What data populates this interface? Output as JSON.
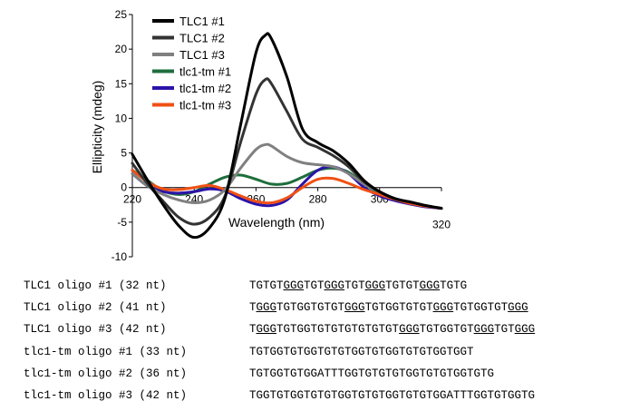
{
  "chart_data": {
    "type": "line",
    "xlabel": "Wavelength (nm)",
    "ylabel": "Ellipticity (mdeg)",
    "xlim": [
      220,
      320
    ],
    "ylim": [
      -10,
      25
    ],
    "x_ticks": [
      220,
      240,
      260,
      280,
      300,
      320
    ],
    "y_ticks": [
      25,
      20,
      15,
      10,
      5,
      0,
      -5,
      -10
    ],
    "legend_position": "top-left",
    "series": [
      {
        "name": "TLC1 #1",
        "color": "#000000",
        "x": [
          220,
          225,
          230,
          235,
          240,
          245,
          250,
          255,
          260,
          263,
          265,
          270,
          275,
          280,
          285,
          290,
          295,
          300,
          305,
          310,
          315,
          320
        ],
        "y": [
          4.8,
          1.0,
          -2.5,
          -5.5,
          -7.2,
          -5.8,
          -1.5,
          9.0,
          19.5,
          22.0,
          21.5,
          16.0,
          8.5,
          6.5,
          5.3,
          3.5,
          1.0,
          -0.6,
          -1.6,
          -2.1,
          -2.6,
          -3.0
        ]
      },
      {
        "name": "TLC1 #2",
        "color": "#333333",
        "x": [
          220,
          225,
          230,
          235,
          240,
          245,
          250,
          255,
          260,
          263,
          265,
          270,
          275,
          280,
          285,
          290,
          295,
          300,
          305,
          310,
          315,
          320
        ],
        "y": [
          3.5,
          0.5,
          -2.0,
          -4.3,
          -5.3,
          -4.3,
          -1.2,
          6.5,
          13.5,
          15.6,
          15.0,
          11.0,
          7.0,
          5.8,
          4.6,
          3.0,
          0.8,
          -0.6,
          -1.6,
          -2.1,
          -2.6,
          -3.0
        ]
      },
      {
        "name": "TLC1 #3",
        "color": "#808080",
        "x": [
          220,
          225,
          230,
          235,
          240,
          245,
          250,
          255,
          260,
          263,
          265,
          270,
          275,
          280,
          285,
          290,
          295,
          300,
          305,
          310,
          315,
          320
        ],
        "y": [
          2.0,
          0.2,
          -1.0,
          -1.8,
          -2.2,
          -1.8,
          -0.3,
          2.8,
          5.5,
          6.2,
          6.0,
          4.5,
          3.6,
          3.3,
          3.0,
          2.0,
          0.5,
          -0.6,
          -1.6,
          -2.1,
          -2.6,
          -3.0
        ]
      },
      {
        "name": "tlc1-tm #1",
        "color": "#1e6e3c",
        "x": [
          220,
          225,
          230,
          235,
          240,
          245,
          250,
          255,
          260,
          265,
          270,
          275,
          280,
          285,
          290,
          295,
          300,
          305,
          310,
          315,
          320
        ],
        "y": [
          2.5,
          1.0,
          -0.5,
          -1.0,
          -0.6,
          0.5,
          1.5,
          1.8,
          1.2,
          0.5,
          0.6,
          1.5,
          2.5,
          2.8,
          2.2,
          0.5,
          -0.8,
          -1.8,
          -2.3,
          -2.7,
          -3.0
        ]
      },
      {
        "name": "tlc1-tm #2",
        "color": "#2a14a8",
        "x": [
          220,
          225,
          230,
          235,
          240,
          245,
          250,
          255,
          260,
          265,
          270,
          275,
          280,
          285,
          290,
          295,
          300,
          305,
          310,
          315,
          320
        ],
        "y": [
          2.0,
          0.2,
          -0.6,
          -0.8,
          -0.6,
          -0.2,
          -0.5,
          -1.6,
          -2.4,
          -2.6,
          -1.8,
          0.5,
          2.5,
          3.0,
          2.0,
          0.0,
          -1.2,
          -1.9,
          -2.4,
          -2.8,
          -3.0
        ]
      },
      {
        "name": "tlc1-tm #3",
        "color": "#f05014",
        "x": [
          220,
          225,
          230,
          235,
          240,
          245,
          250,
          255,
          260,
          265,
          270,
          275,
          280,
          285,
          290,
          295,
          300,
          305,
          310,
          315,
          320
        ],
        "y": [
          2.5,
          0.8,
          -0.2,
          -0.3,
          0.0,
          0.3,
          -0.3,
          -1.2,
          -2.0,
          -2.2,
          -1.5,
          0.0,
          1.2,
          1.3,
          0.6,
          -0.3,
          -1.0,
          -1.7,
          -2.3,
          -2.7,
          -3.0
        ]
      }
    ]
  },
  "oligos": [
    {
      "name": "TLC1 oligo #1 (32 nt)",
      "seq": [
        [
          "TGTGT",
          false
        ],
        [
          "GGG",
          true
        ],
        [
          "TGT",
          false
        ],
        [
          "GGG",
          true
        ],
        [
          "TGT",
          false
        ],
        [
          "GGG",
          true
        ],
        [
          "TGTGT",
          false
        ],
        [
          "GGG",
          true
        ],
        [
          "TGTG",
          false
        ]
      ]
    },
    {
      "name": "TLC1 oligo #2 (41 nt)",
      "seq": [
        [
          "T",
          false
        ],
        [
          "GGG",
          true
        ],
        [
          "TGTGGTGTGT",
          false
        ],
        [
          "GGG",
          true
        ],
        [
          "TGTGGTGTGT",
          false
        ],
        [
          "GGG",
          true
        ],
        [
          "TGTGGTGT",
          false
        ],
        [
          "GGG",
          true
        ]
      ]
    },
    {
      "name": "TLC1 oligo #3 (42 nt)",
      "seq": [
        [
          "T",
          false
        ],
        [
          "GGG",
          true
        ],
        [
          "TGTGGTGTGTGTGTGTGT",
          false
        ],
        [
          "GGG",
          true
        ],
        [
          "TGTGGTGT",
          false
        ],
        [
          "GGG",
          true
        ],
        [
          "TGT",
          false
        ],
        [
          "GGG",
          true
        ]
      ]
    },
    {
      "name": "tlc1-tm oligo #1 (33 nt)",
      "seq": [
        [
          "TGTGGTGTGGTGTGTGGTGTGGTGTGTGGTGGT",
          false
        ]
      ]
    },
    {
      "name": "tlc1-tm oligo #2 (36 nt)",
      "seq": [
        [
          "TGTGGTGTGGATTTGGTGTGTGTGGTGTGTGGTGTG",
          false
        ]
      ]
    },
    {
      "name": "tlc1-tm oligo #3 (42 nt)",
      "seq": [
        [
          "TGGTGTGGTGTGTGGTGTGTGGTGTGTGGATTTGGTGTGGTG",
          false
        ]
      ]
    }
  ]
}
